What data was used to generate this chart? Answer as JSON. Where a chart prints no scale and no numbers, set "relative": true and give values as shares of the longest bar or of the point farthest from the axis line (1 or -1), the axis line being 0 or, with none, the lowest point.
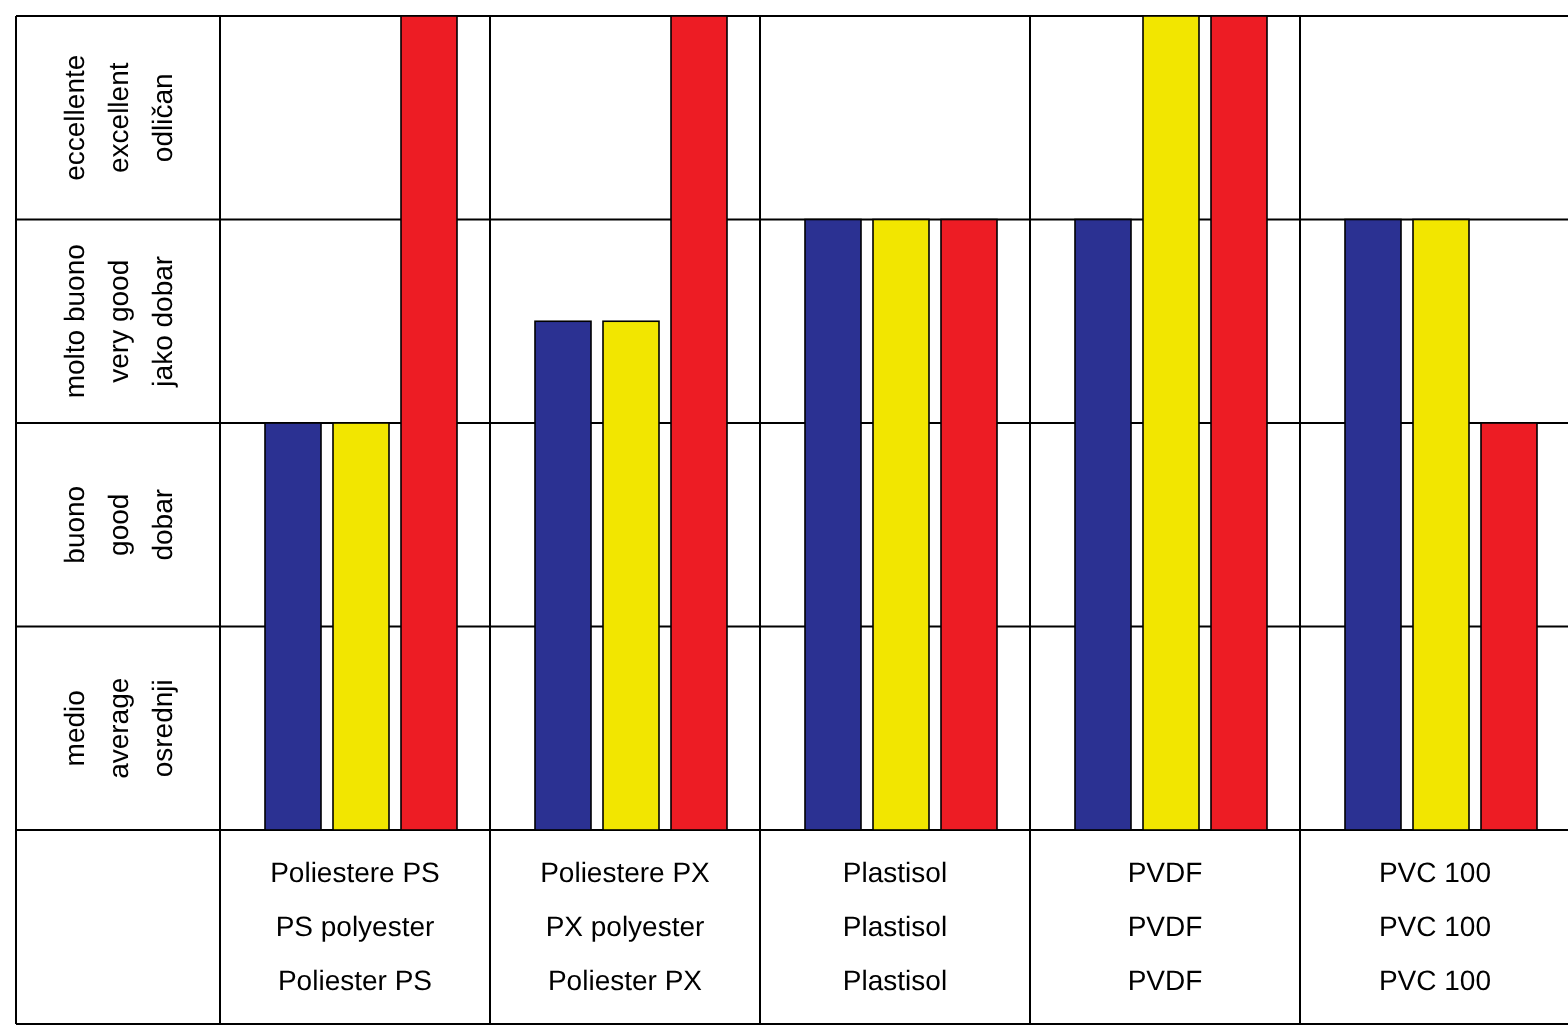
{
  "chart_data": {
    "type": "bar",
    "relative": true,
    "categories": [
      "Poliestere PS\nPS polyester\nPoliester PS",
      "Poliestere PX\nPX polyester\nPoliester PX",
      "Plastisol\nPlastisol\nPlastisol",
      "PVDF\nPVDF\nPVDF",
      "PVC 100\nPVC 100\nPVC 100"
    ],
    "series": [
      {
        "color": "#2b3192",
        "values": [
          0.5,
          0.625,
          0.75,
          0.75,
          0.75
        ]
      },
      {
        "color": "#f2e600",
        "values": [
          0.5,
          0.625,
          0.75,
          1,
          0.75
        ]
      },
      {
        "color": "#ed1c24",
        "values": [
          1,
          1,
          0.75,
          1,
          0.5
        ]
      }
    ],
    "annotations": [
      "eccellente\nexcellent\nodličan",
      "molto buono\nvery good\njako dobar",
      "buono\ngood\ndobar",
      "medio\naverage\nosrednji"
    ],
    "grid": true
  }
}
